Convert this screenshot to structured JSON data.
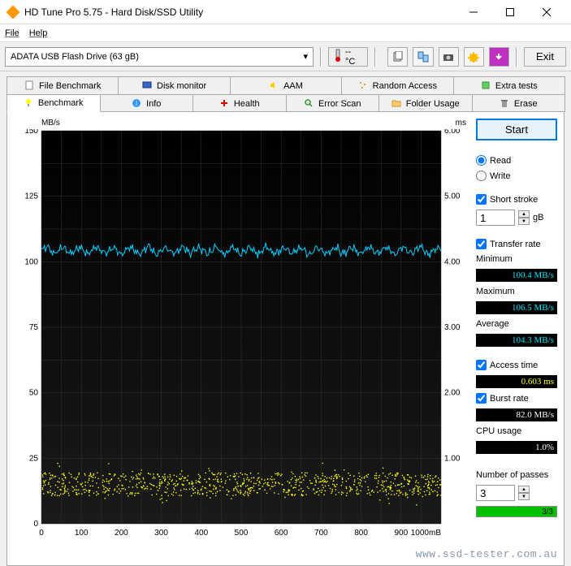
{
  "window": {
    "title": "HD Tune Pro 5.75 - Hard Disk/SSD Utility"
  },
  "menu": {
    "file": "File",
    "help": "Help"
  },
  "toolbar": {
    "drive": "ADATA   USB Flash Drive (63 gB)",
    "temp": "-- °C",
    "exit": "Exit"
  },
  "tabs_top": {
    "file_benchmark": "File Benchmark",
    "disk_monitor": "Disk monitor",
    "aam": "AAM",
    "random_access": "Random Access",
    "extra_tests": "Extra tests"
  },
  "tabs_bottom": {
    "benchmark": "Benchmark",
    "info": "Info",
    "health": "Health",
    "error_scan": "Error Scan",
    "folder_usage": "Folder Usage",
    "erase": "Erase"
  },
  "chart": {
    "y_left_label": "MB/s",
    "y_right_label": "ms",
    "y_left_ticks": [
      150,
      125,
      100,
      75,
      50,
      25,
      0
    ],
    "y_right_ticks": [
      "6.00",
      "5.00",
      "4.00",
      "3.00",
      "2.00",
      "1.00"
    ],
    "x_ticks": [
      0,
      100,
      200,
      300,
      400,
      500,
      600,
      700,
      800,
      900,
      "1000mB"
    ],
    "plot_bg": "#000000",
    "grid_color": "#333333",
    "transfer_color": "#00cfff",
    "access_color": "#ffff00",
    "x_min": 0,
    "x_max": 1000,
    "y_left_min": 0,
    "y_left_max": 150,
    "y_right_min": 0,
    "y_right_max": 6,
    "transfer_mean": 104.3,
    "transfer_min": 100.4,
    "transfer_max": 106.5,
    "access_mean_ms": 0.603
  },
  "panel": {
    "start": "Start",
    "read": "Read",
    "write": "Write",
    "short_stroke": "Short stroke",
    "short_stroke_val": "1",
    "short_stroke_unit": "gB",
    "transfer_rate": "Transfer rate",
    "minimum": "Minimum",
    "min_val": "100.4 MB/s",
    "maximum": "Maximum",
    "max_val": "106.5 MB/s",
    "average": "Average",
    "avg_val": "104.3 MB/s",
    "access_time": "Access time",
    "access_val": "0.603 ms",
    "burst_rate": "Burst rate",
    "burst_val": "82.0 MB/s",
    "cpu_usage": "CPU usage",
    "cpu_val": "1.0%",
    "num_passes": "Number of passes",
    "passes_val": "3",
    "passes_progress": "3/3",
    "progress_pct": 100
  },
  "watermark": "www.ssd-tester.com.au"
}
